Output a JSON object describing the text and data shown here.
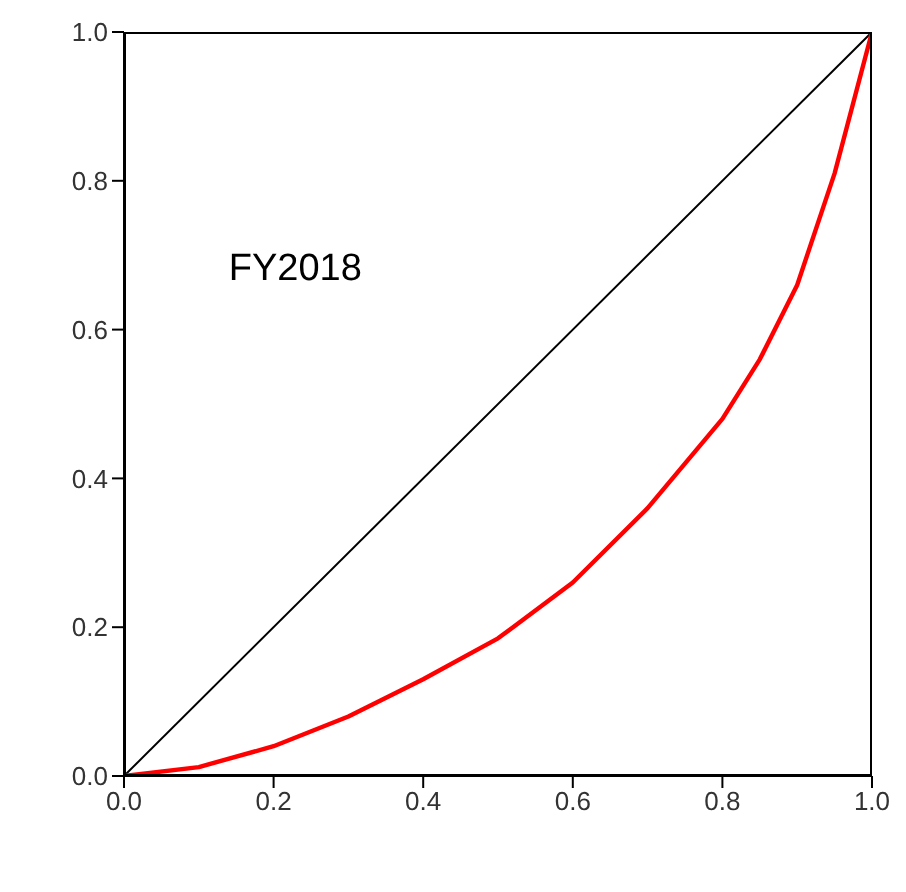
{
  "chart_data": {
    "type": "line",
    "annotations": [
      "FY2018"
    ],
    "series": [
      {
        "color": "#000000",
        "x": [
          0,
          1
        ],
        "values": [
          0,
          1
        ]
      },
      {
        "color": "#ff0000",
        "x": [
          0,
          0.1,
          0.2,
          0.3,
          0.4,
          0.5,
          0.6,
          0.7,
          0.8,
          0.85,
          0.9,
          0.95,
          1
        ],
        "values": [
          0,
          0.012,
          0.04,
          0.08,
          0.13,
          0.185,
          0.26,
          0.36,
          0.48,
          0.56,
          0.66,
          0.81,
          1
        ]
      }
    ],
    "xlim": [
      0,
      1
    ],
    "xticks": [
      {
        "value": 0,
        "label": "0.0"
      },
      0.2,
      0.4,
      0.6,
      0.8,
      {
        "value": 1,
        "label": "1.0"
      }
    ],
    "ylim": [
      0,
      1
    ],
    "yticks": [
      {
        "value": 0,
        "label": "0.0"
      },
      0.2,
      0.4,
      0.6,
      0.8,
      {
        "value": 1,
        "label": "1.0"
      }
    ],
    "grid": false,
    "marker": "none",
    "line_style": "solid"
  }
}
